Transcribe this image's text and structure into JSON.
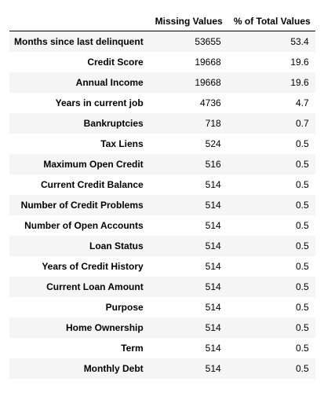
{
  "table": {
    "index_header": "",
    "columns": [
      "Missing Values",
      "% of Total Values"
    ],
    "rows": [
      {
        "label": "Months since last delinquent",
        "missing": "53655",
        "percent": "53.4"
      },
      {
        "label": "Credit Score",
        "missing": "19668",
        "percent": "19.6"
      },
      {
        "label": "Annual Income",
        "missing": "19668",
        "percent": "19.6"
      },
      {
        "label": "Years in current job",
        "missing": "4736",
        "percent": "4.7"
      },
      {
        "label": "Bankruptcies",
        "missing": "718",
        "percent": "0.7"
      },
      {
        "label": "Tax Liens",
        "missing": "524",
        "percent": "0.5"
      },
      {
        "label": "Maximum Open Credit",
        "missing": "516",
        "percent": "0.5"
      },
      {
        "label": "Current Credit Balance",
        "missing": "514",
        "percent": "0.5"
      },
      {
        "label": "Number of Credit Problems",
        "missing": "514",
        "percent": "0.5"
      },
      {
        "label": "Number of Open Accounts",
        "missing": "514",
        "percent": "0.5"
      },
      {
        "label": "Loan Status",
        "missing": "514",
        "percent": "0.5"
      },
      {
        "label": "Years of Credit History",
        "missing": "514",
        "percent": "0.5"
      },
      {
        "label": "Current Loan Amount",
        "missing": "514",
        "percent": "0.5"
      },
      {
        "label": "Purpose",
        "missing": "514",
        "percent": "0.5"
      },
      {
        "label": "Home Ownership",
        "missing": "514",
        "percent": "0.5"
      },
      {
        "label": "Term",
        "missing": "514",
        "percent": "0.5"
      },
      {
        "label": "Monthly Debt",
        "missing": "514",
        "percent": "0.5"
      }
    ]
  }
}
